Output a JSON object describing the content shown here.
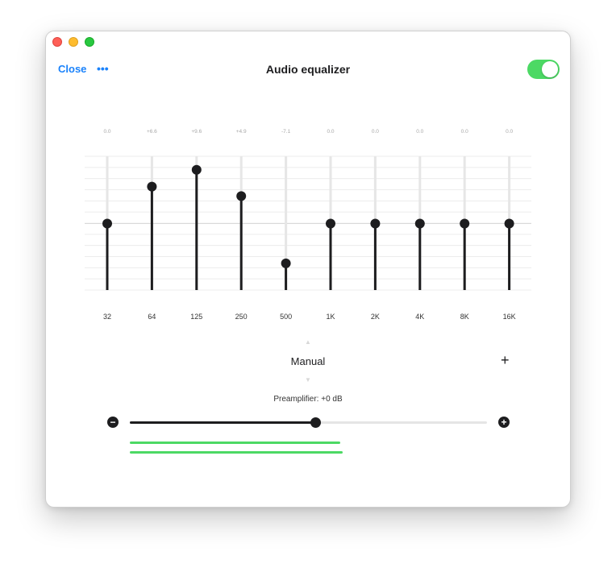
{
  "header": {
    "close_label": "Close",
    "more_label": "•••",
    "title": "Audio equalizer",
    "enabled": true
  },
  "equalizer": {
    "range_db": [
      -12,
      12
    ],
    "bands": [
      {
        "freq": "32",
        "gain_label": "0.0",
        "gain": 0.0
      },
      {
        "freq": "64",
        "gain_label": "+6.6",
        "gain": 6.6
      },
      {
        "freq": "125",
        "gain_label": "+9.6",
        "gain": 9.6
      },
      {
        "freq": "250",
        "gain_label": "+4.9",
        "gain": 4.9
      },
      {
        "freq": "500",
        "gain_label": "-7.1",
        "gain": -7.1
      },
      {
        "freq": "1K",
        "gain_label": "0.0",
        "gain": 0.0
      },
      {
        "freq": "2K",
        "gain_label": "0.0",
        "gain": 0.0
      },
      {
        "freq": "4K",
        "gain_label": "0.0",
        "gain": 0.0
      },
      {
        "freq": "8K",
        "gain_label": "0.0",
        "gain": 0.0
      },
      {
        "freq": "16K",
        "gain_label": "0.0",
        "gain": 0.0
      }
    ]
  },
  "preset": {
    "name": "Manual",
    "add_label": "+",
    "up_icon": "▲",
    "down_icon": "▼"
  },
  "preamp": {
    "label": "Preamplifier: +0 dB",
    "level": 0.52,
    "minus_label": "−",
    "plus_label": "+"
  },
  "colors": {
    "accent": "#1a82fb",
    "toggle_on": "#4cd964",
    "knob": "#1d1d1f"
  }
}
